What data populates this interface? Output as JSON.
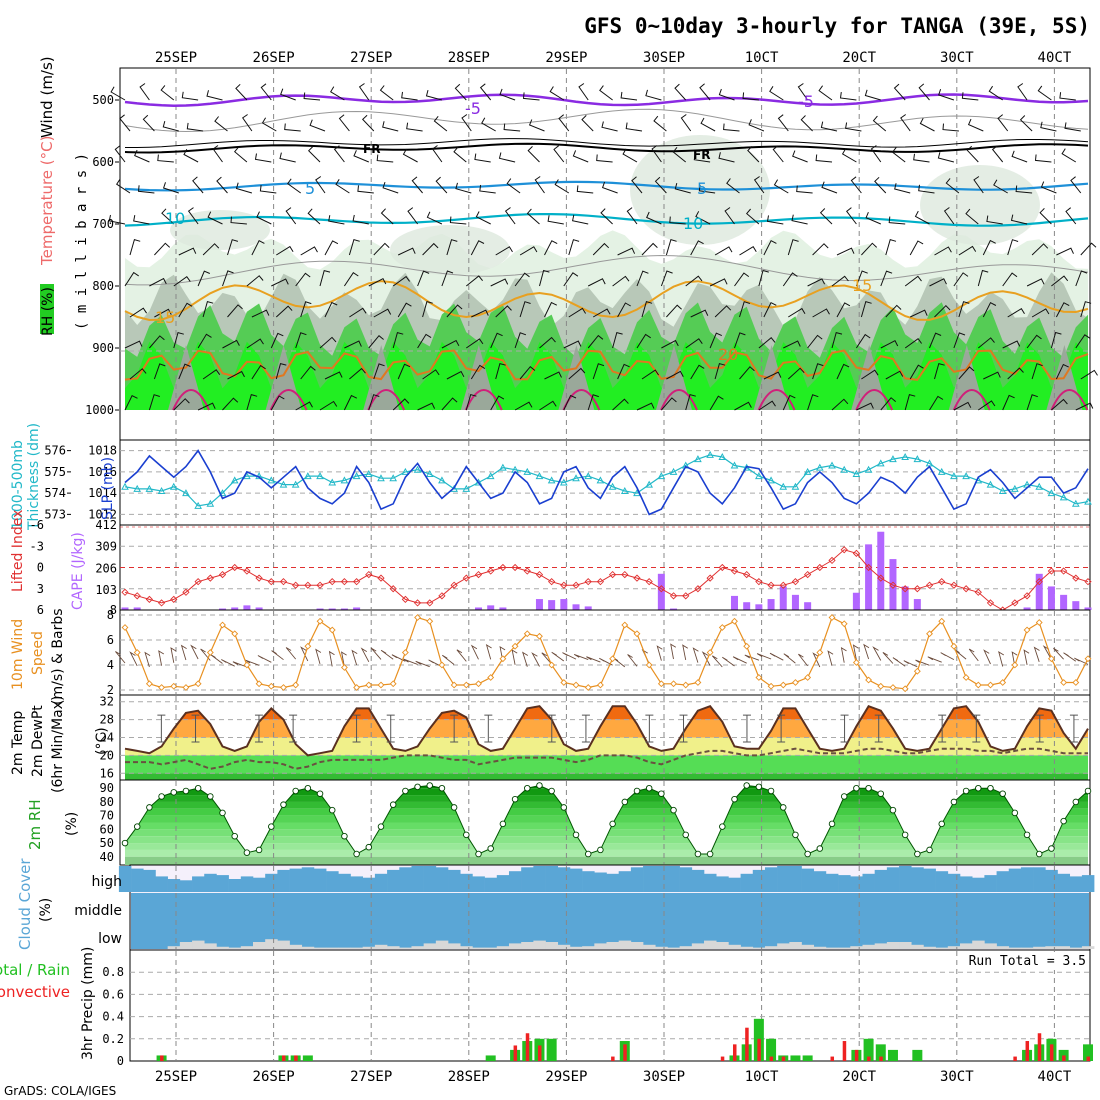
{
  "title": "GFS 0~10day 3-hourly for TANGA (39E, 5S)",
  "footer": "GrADS: COLA/IGES",
  "colors": {
    "purple": "#8a2be2",
    "frost": "#000000",
    "cyan5": "#1e90d8",
    "cyan10": "#00b0c8",
    "orange15": "#e8a020",
    "orange20": "#e07820",
    "magenta": "#d0207a",
    "green": "#22cc22",
    "lightgreen": "#4cd44c",
    "slp": "#1a3fd0",
    "thickness": "#22b8c8",
    "lifted": "#e03030",
    "cape": "#b266ff",
    "wind": "#e89020",
    "cloud": "#5aa6d6",
    "rain": "#22c022",
    "conv": "#ee2222"
  },
  "date_labels": [
    "25SEP",
    "26SEP",
    "27SEP",
    "28SEP",
    "29SEP",
    "30SEP",
    "1OCT",
    "2OCT",
    "3OCT",
    "4OCT"
  ],
  "date_labels_display": [
    "25SEP",
    "26SEP",
    "27SEP",
    "28SEP",
    "29SEP",
    "30SEP",
    "10CT",
    "20CT",
    "30CT",
    "40CT"
  ],
  "panels": {
    "upper": {
      "ylabel_rh": "RH (%)",
      "ylabel_temp": "Temperature (°C)",
      "ylabel_wind": "Wind (m/s)",
      "ylabel_mb": "( m i l l i b a r s )",
      "levels": [
        "500",
        "600",
        "700",
        "800",
        "900",
        "1000"
      ],
      "contour_labels": [
        "5",
        "FR",
        "5",
        "10",
        "15",
        "20",
        "-5",
        "10"
      ]
    },
    "thick": {
      "ylabel_a": "1000-500mb",
      "ylabel_b": "Thickness (dm)",
      "ylabel_slp": "SLP (mb)",
      "left_ticks": [
        "576",
        "575",
        "574",
        "573"
      ],
      "right_ticks": [
        "1018",
        "1016",
        "1014",
        "1012"
      ]
    },
    "li": {
      "ylabel_li": "Lifted Index",
      "ylabel_cape": "CAPE (J/kg)",
      "left_ticks": [
        "-6",
        "-3",
        "0",
        "3",
        "6"
      ],
      "right_ticks": [
        "412",
        "309",
        "206",
        "103",
        "8"
      ]
    },
    "wind": {
      "ylabel_a": "10m Wind",
      "ylabel_b": "Speed",
      "ylabel_c": "(m/s) & Barbs",
      "ticks": [
        "8",
        "6",
        "4",
        "2"
      ]
    },
    "temp": {
      "ylabel_a": "2m Temp",
      "ylabel_b": "2m DewPt",
      "ylabel_c": "(6hr Min/Max)",
      "ylabel_d": "(°C)",
      "ticks": [
        "32",
        "28",
        "24",
        "20",
        "16"
      ]
    },
    "rh": {
      "ylabel_a": "2m RH",
      "ylabel_b": "(%)",
      "ticks": [
        "90",
        "80",
        "70",
        "60",
        "50",
        "40"
      ]
    },
    "cloud": {
      "ylabel_a": "Cloud Cover",
      "ylabel_b": "(%)",
      "labels": [
        "high",
        "middle",
        "low"
      ]
    },
    "precip": {
      "ylabel_a": "Total / Rain",
      "ylabel_b": "Convective",
      "ylabel_c": "3hr Precip (mm)",
      "run_total": "Run Total = 3.5",
      "ticks": [
        "0.8",
        "0.6",
        "0.4",
        "0.2",
        "0"
      ]
    }
  },
  "chart_data": [
    {
      "type": "line",
      "title": "SLP (mb)",
      "x_unit": "forecast step (3-hourly, 0..79)",
      "ylim": [
        1011,
        1019
      ],
      "values": [
        1015,
        1016,
        1017.5,
        1016.5,
        1015.5,
        1016.5,
        1018,
        1016,
        1013.5,
        1014,
        1016,
        1015.5,
        1014.5,
        1015.5,
        1016.5,
        1014.5,
        1013.5,
        1013,
        1014,
        1016.5,
        1015,
        1012.5,
        1013,
        1015.5,
        1016.8,
        1015,
        1013.5,
        1014.5,
        1016.5,
        1015,
        1013.5,
        1014,
        1016,
        1015,
        1013,
        1013.5,
        1016,
        1016.5,
        1014.5,
        1013.5,
        1015.5,
        1016.5,
        1014.5,
        1012,
        1012.5,
        1014.5,
        1016.5,
        1016,
        1014,
        1013,
        1014.5,
        1016.5,
        1016.3,
        1014.5,
        1012.5,
        1013,
        1015,
        1016,
        1015,
        1013.5,
        1013,
        1014,
        1015.5,
        1015,
        1014,
        1015.5,
        1016.5,
        1014.5,
        1012.5,
        1013,
        1015.5,
        1016.2,
        1015,
        1013.5,
        1014.5,
        1015.5,
        1015.5,
        1014,
        1014.5,
        1016.3
      ]
    },
    {
      "type": "line",
      "title": "1000-500mb Thickness (dm)",
      "x_unit": "forecast step",
      "ylim": [
        572.5,
        576.5
      ],
      "values": [
        574.3,
        574.2,
        574.2,
        574.1,
        574.3,
        574,
        573.4,
        573.5,
        574,
        574.6,
        574.8,
        574.8,
        574.6,
        574.4,
        574.4,
        574.8,
        574.8,
        574.5,
        574.6,
        574.8,
        574.9,
        574.7,
        574.7,
        575,
        575.1,
        574.9,
        574.6,
        574.2,
        574.2,
        574.5,
        574.8,
        575.2,
        575.1,
        575,
        574.8,
        574.6,
        574.5,
        574.7,
        574.8,
        574.6,
        574.3,
        574.1,
        574,
        574.4,
        574.8,
        575,
        575.3,
        575.6,
        575.8,
        575.7,
        575.3,
        575.2,
        574.8,
        574.6,
        574.3,
        574.3,
        575,
        575.2,
        575.3,
        575.1,
        574.9,
        575.1,
        575.4,
        575.6,
        575.7,
        575.6,
        575.4,
        575,
        574.8,
        574.8,
        574.6,
        574.4,
        574.1,
        574.2,
        574.4,
        574.3,
        574,
        573.8,
        573.5,
        573.6
      ]
    },
    {
      "type": "line",
      "title": "Lifted Index",
      "x_unit": "forecast step",
      "ylim": [
        -6,
        6
      ],
      "values": [
        3.5,
        4,
        4.5,
        5,
        4.5,
        3.5,
        2,
        1.5,
        1,
        0,
        0.5,
        1.5,
        2,
        2,
        2.5,
        2.5,
        2.5,
        2,
        2,
        2,
        1,
        1.5,
        3,
        4.5,
        5,
        5,
        4,
        2.5,
        1.5,
        1,
        0.5,
        0,
        0,
        0.5,
        1,
        2,
        2.5,
        2.5,
        2,
        2,
        1,
        1,
        1.5,
        2,
        3,
        4,
        4,
        3,
        1.5,
        0,
        0.5,
        1,
        2,
        2.5,
        2.5,
        2,
        1,
        0,
        -1,
        -2.5,
        -2,
        0,
        1.5,
        2.5,
        3,
        3,
        2.5,
        2,
        2.5,
        3,
        3.5,
        5,
        6,
        5,
        4,
        2,
        0.5,
        0.5,
        1.5,
        2
      ]
    },
    {
      "type": "bar",
      "title": "CAPE (J/kg)",
      "x_unit": "forecast step",
      "ylim": [
        8,
        412
      ],
      "values": [
        20,
        20,
        0,
        0,
        0,
        0,
        0,
        0,
        15,
        20,
        30,
        20,
        10,
        0,
        0,
        0,
        15,
        15,
        15,
        20,
        0,
        0,
        0,
        0,
        0,
        0,
        0,
        0,
        10,
        20,
        30,
        20,
        10,
        0,
        60,
        55,
        60,
        35,
        25,
        10,
        0,
        0,
        0,
        10,
        180,
        15,
        10,
        0,
        0,
        0,
        75,
        45,
        35,
        60,
        120,
        80,
        45,
        10,
        0,
        0,
        90,
        320,
        380,
        250,
        120,
        60,
        10,
        0,
        0,
        0,
        0,
        0,
        0,
        0,
        20,
        180,
        120,
        80,
        50,
        20
      ]
    },
    {
      "type": "line",
      "title": "10m Wind Speed (m/s)",
      "x_unit": "forecast step",
      "ylim": [
        2,
        8
      ],
      "values": [
        7,
        5,
        2.5,
        2.2,
        2.3,
        2.2,
        2.5,
        5,
        7.2,
        6.5,
        4,
        2.5,
        2.3,
        2.2,
        2.4,
        5.5,
        7.5,
        6.8,
        3.8,
        2.2,
        2.4,
        2.4,
        2.5,
        5,
        7.8,
        7.5,
        4,
        2.4,
        2.4,
        2.5,
        3,
        4.5,
        5.5,
        6.5,
        6.3,
        4,
        2.6,
        2.4,
        2.2,
        2.4,
        4.5,
        7.2,
        6.5,
        4,
        2.5,
        2.5,
        2.4,
        2.6,
        5,
        7,
        7.5,
        5.5,
        3,
        2.3,
        2.4,
        2.6,
        3,
        5,
        7.8,
        7.3,
        4.2,
        2.8,
        2.3,
        2.2,
        2.1,
        3.5,
        6.5,
        7.5,
        5.5,
        3,
        2.4,
        2.4,
        2.6,
        4,
        6.8,
        7.4,
        4.5,
        2.6,
        2.6,
        4.5
      ]
    },
    {
      "type": "area",
      "title": "2m Temp / 2m DewPt (°C)",
      "x_unit": "forecast step",
      "ylim": [
        15,
        33
      ],
      "series": [
        {
          "name": "2m Temp",
          "values": [
            21.5,
            21,
            20.5,
            22,
            26,
            29.5,
            30,
            27,
            22,
            21,
            22,
            27.5,
            30.5,
            28,
            22.5,
            20,
            20.5,
            21,
            26.5,
            30.5,
            30.5,
            26,
            21.5,
            21,
            22,
            26,
            29.5,
            30,
            28.5,
            22.5,
            21,
            21.5,
            26,
            30.5,
            31,
            28,
            22.5,
            21,
            21.5,
            26.5,
            31,
            31,
            27,
            22,
            21,
            21.5,
            26,
            30,
            31,
            27.5,
            22,
            21.5,
            21.5,
            25.5,
            30.5,
            30.5,
            26,
            21.5,
            21,
            21.5,
            26.5,
            31,
            30,
            26,
            21.5,
            21,
            21.5,
            26,
            30.5,
            31,
            27.5,
            22,
            21,
            21.5,
            26.5,
            30.5,
            30,
            25,
            21.5,
            26
          ]
        },
        {
          "name": "2m DewPt",
          "values": [
            18.5,
            18.5,
            18.5,
            18,
            18.5,
            19,
            18,
            17,
            17.5,
            18.5,
            19,
            18.5,
            18.5,
            18,
            17,
            17.5,
            18.5,
            19,
            19,
            19,
            19,
            19,
            19.5,
            20,
            20,
            20,
            19.5,
            19,
            19,
            18,
            18.5,
            19,
            19.5,
            19.5,
            19.5,
            19.5,
            19,
            18.5,
            19,
            20,
            20,
            20,
            19.5,
            18.5,
            18,
            19,
            20,
            20.5,
            21,
            21,
            20.5,
            20,
            20,
            20.5,
            21,
            21.5,
            21,
            20.5,
            20.5,
            20.5,
            21,
            21.5,
            21.5,
            21,
            20.5,
            20.5,
            21,
            21.5,
            21.5,
            21.5,
            21,
            21,
            20.5,
            21,
            21.5,
            21.5,
            21,
            20.5,
            20.5,
            20.5
          ]
        }
      ]
    },
    {
      "type": "area",
      "title": "2m RH (%)",
      "x_unit": "forecast step",
      "ylim": [
        35,
        95
      ],
      "values": [
        50,
        62,
        76,
        84,
        87,
        88,
        90,
        84,
        72,
        55,
        43,
        45,
        62,
        78,
        88,
        90,
        86,
        74,
        55,
        42,
        47,
        62,
        78,
        88,
        91,
        92,
        90,
        76,
        56,
        42,
        46,
        64,
        82,
        90,
        92,
        88,
        76,
        56,
        42,
        45,
        64,
        80,
        88,
        90,
        86,
        74,
        56,
        42,
        42,
        62,
        82,
        92,
        91,
        88,
        76,
        56,
        42,
        46,
        64,
        84,
        90,
        90,
        86,
        74,
        56,
        42,
        45,
        64,
        80,
        88,
        90,
        90,
        86,
        72,
        56,
        42,
        46,
        66,
        80,
        88
      ]
    },
    {
      "type": "bar",
      "title": "Cloud Cover (%)",
      "x_unit": "forecast step",
      "ylim": [
        0,
        100
      ],
      "series": [
        {
          "name": "high",
          "values": [
            100,
            90,
            85,
            60,
            50,
            45,
            60,
            70,
            65,
            50,
            60,
            55,
            70,
            85,
            90,
            95,
            90,
            80,
            70,
            60,
            55,
            70,
            85,
            95,
            100,
            100,
            95,
            85,
            70,
            60,
            55,
            65,
            80,
            95,
            100,
            100,
            95,
            90,
            80,
            75,
            70,
            80,
            95,
            100,
            100,
            100,
            95,
            85,
            70,
            60,
            55,
            70,
            85,
            95,
            100,
            100,
            90,
            80,
            70,
            65,
            60,
            70,
            85,
            95,
            100,
            95,
            90,
            80,
            70,
            60,
            55,
            65,
            80,
            90,
            95,
            95,
            85,
            70,
            60,
            65
          ]
        },
        {
          "name": "low",
          "values": [
            0,
            0,
            0,
            0,
            10,
            25,
            30,
            20,
            8,
            5,
            10,
            25,
            35,
            30,
            15,
            8,
            5,
            5,
            5,
            5,
            8,
            15,
            10,
            5,
            10,
            20,
            30,
            20,
            10,
            5,
            5,
            10,
            20,
            25,
            30,
            25,
            15,
            8,
            10,
            20,
            25,
            30,
            25,
            15,
            8,
            5,
            10,
            20,
            30,
            25,
            15,
            8,
            5,
            10,
            20,
            25,
            15,
            8,
            5,
            5,
            10,
            15,
            20,
            25,
            25,
            15,
            8,
            5,
            10,
            20,
            30,
            20,
            10,
            5,
            5,
            8,
            10,
            10,
            5,
            10
          ]
        }
      ]
    },
    {
      "type": "bar",
      "title": "3hr Precip (mm)",
      "x_unit": "forecast step",
      "ylim": [
        0,
        1
      ],
      "series": [
        {
          "name": "Total / Rain",
          "values": [
            0,
            0,
            0,
            0.05,
            0,
            0,
            0,
            0,
            0,
            0,
            0,
            0,
            0,
            0.05,
            0.05,
            0.05,
            0,
            0,
            0,
            0,
            0,
            0,
            0,
            0,
            0,
            0,
            0,
            0,
            0,
            0,
            0.05,
            0,
            0.1,
            0.18,
            0.2,
            0.2,
            0,
            0,
            0,
            0,
            0,
            0.18,
            0,
            0,
            0,
            0,
            0,
            0,
            0,
            0,
            0.05,
            0.15,
            0.38,
            0.2,
            0.05,
            0.05,
            0.05,
            0,
            0,
            0,
            0.1,
            0.2,
            0.15,
            0.1,
            0,
            0.1,
            0,
            0,
            0,
            0,
            0,
            0,
            0,
            0,
            0.1,
            0.15,
            0.2,
            0.1,
            0,
            0.15
          ]
        },
        {
          "name": "Convective",
          "values": [
            0,
            0,
            0,
            0.05,
            0,
            0,
            0,
            0,
            0,
            0,
            0,
            0,
            0,
            0.05,
            0.05,
            0,
            0,
            0,
            0,
            0,
            0,
            0,
            0,
            0,
            0,
            0,
            0,
            0,
            0,
            0,
            0,
            0,
            0.14,
            0.25,
            0.14,
            0,
            0,
            0,
            0,
            0,
            0.04,
            0.15,
            0,
            0,
            0,
            0,
            0,
            0,
            0,
            0.04,
            0.15,
            0.3,
            0.2,
            0.04,
            0.04,
            0,
            0,
            0,
            0.04,
            0.18,
            0.1,
            0.04,
            0.04,
            0,
            0,
            0,
            0,
            0,
            0,
            0,
            0,
            0,
            0,
            0.04,
            0.18,
            0.25,
            0.15,
            0.05,
            0,
            0.04
          ]
        }
      ]
    }
  ]
}
